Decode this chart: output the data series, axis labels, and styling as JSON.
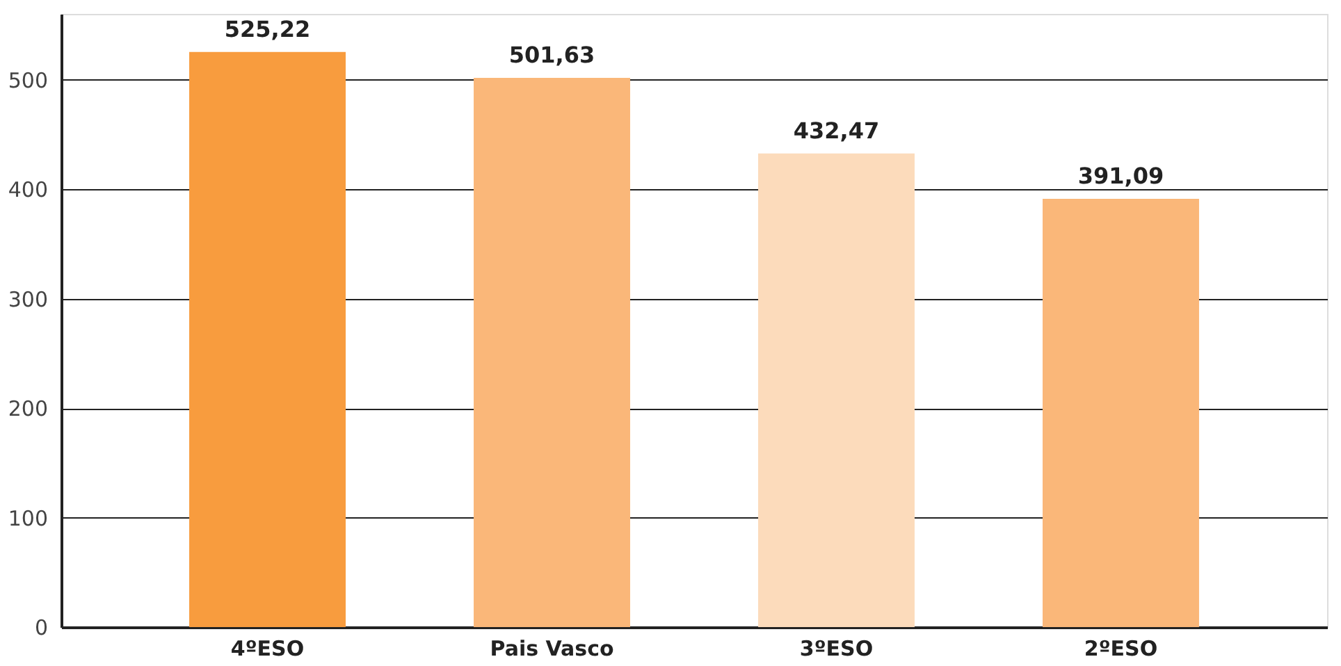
{
  "chart_data": {
    "type": "bar",
    "categories": [
      "4ºESO",
      "Pais Vasco",
      "3ºESO",
      "2ºESO"
    ],
    "values": [
      525.22,
      501.63,
      432.47,
      391.09
    ],
    "colors": [
      "#f89c3e",
      "#fab779",
      "#fcdbbb",
      "#fab779"
    ],
    "value_labels": [
      "525,22",
      "501,63",
      "432,47",
      "391,09"
    ],
    "ylim": [
      0,
      560
    ],
    "yticks": [
      0,
      100,
      200,
      300,
      400,
      500
    ],
    "grid": "y"
  }
}
